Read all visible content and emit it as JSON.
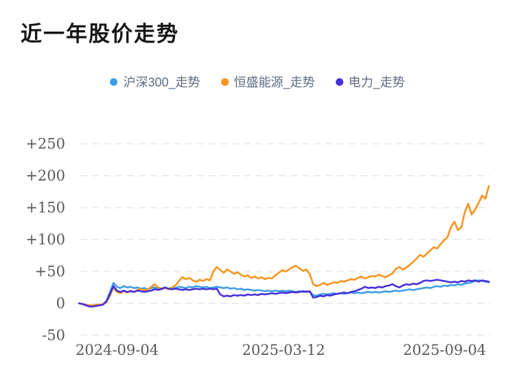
{
  "chart_data": {
    "type": "line",
    "title": "近一年股价走势",
    "x_ticks": [
      "2024-09-04",
      "2025-03-12",
      "2025-09-04"
    ],
    "y_ticks": [
      {
        "label": "+250",
        "value": 250
      },
      {
        "label": "+200",
        "value": 200
      },
      {
        "label": "+150",
        "value": 150
      },
      {
        "label": "+100",
        "value": 100
      },
      {
        "label": "+50",
        "value": 50
      },
      {
        "label": "0",
        "value": 0
      },
      {
        "label": "-50",
        "value": -50
      }
    ],
    "ylim": [
      -50,
      250
    ],
    "grid": "horizontal-dashed",
    "legend_position": "top-center",
    "colors": {
      "grid": "#ECECEC",
      "axis_text": "#595959",
      "legend_text": "#5B6B82",
      "title_text": "#161616"
    },
    "series": [
      {
        "name": "沪深300_走势",
        "color": "#3D9EE8",
        "values": [
          0,
          -1,
          -3,
          -4,
          -4,
          -3,
          -2,
          -1,
          4,
          18,
          32,
          26,
          24,
          27,
          25,
          26,
          24,
          25,
          23,
          24,
          22,
          24,
          25,
          23,
          22,
          24,
          23,
          25,
          24,
          26,
          25,
          24,
          26,
          25,
          27,
          26,
          25,
          26,
          24,
          25,
          26,
          25,
          24,
          25,
          23,
          24,
          22,
          23,
          21,
          22,
          21,
          20,
          21,
          20,
          19,
          20,
          19,
          20,
          19,
          20,
          19,
          20,
          19,
          18,
          19,
          18,
          19,
          18,
          13,
          12,
          14,
          15,
          14,
          15,
          16,
          15,
          16,
          15,
          16,
          17,
          16,
          17,
          16,
          17,
          18,
          17,
          18,
          17,
          18,
          19,
          18,
          19,
          20,
          19,
          20,
          21,
          22,
          21,
          22,
          23,
          24,
          25,
          24,
          26,
          27,
          26,
          28,
          27,
          29,
          28,
          30,
          29,
          31,
          32,
          33,
          35,
          36,
          35,
          34,
          33
        ]
      },
      {
        "name": "恒盛能源_走势",
        "color": "#F7941D",
        "values": [
          0,
          -1,
          -2,
          -3,
          -3,
          -2,
          -2,
          -1,
          2,
          12,
          25,
          18,
          16,
          19,
          17,
          20,
          18,
          21,
          23,
          20,
          22,
          26,
          30,
          25,
          23,
          24,
          22,
          25,
          28,
          35,
          41,
          38,
          40,
          36,
          34,
          37,
          35,
          38,
          36,
          50,
          57,
          52,
          48,
          53,
          50,
          46,
          49,
          45,
          42,
          44,
          40,
          42,
          39,
          41,
          38,
          40,
          39,
          44,
          48,
          52,
          50,
          53,
          57,
          59,
          55,
          51,
          53,
          46,
          30,
          27,
          29,
          32,
          29,
          31,
          33,
          32,
          35,
          34,
          36,
          38,
          37,
          40,
          42,
          39,
          41,
          43,
          42,
          45,
          43,
          41,
          44,
          47,
          54,
          57,
          53,
          56,
          60,
          65,
          70,
          76,
          73,
          78,
          83,
          88,
          86,
          93,
          99,
          104,
          120,
          128,
          115,
          119,
          143,
          156,
          139,
          147,
          157,
          169,
          164,
          184
        ]
      },
      {
        "name": "电力_走势",
        "color": "#4630D8",
        "values": [
          0,
          -1,
          -3,
          -5,
          -5,
          -4,
          -3,
          -2,
          3,
          15,
          27,
          20,
          18,
          20,
          18,
          19,
          18,
          20,
          19,
          18,
          19,
          20,
          22,
          21,
          23,
          25,
          23,
          22,
          23,
          22,
          21,
          22,
          21,
          22,
          23,
          22,
          23,
          22,
          23,
          22,
          23,
          14,
          11,
          12,
          11,
          13,
          12,
          13,
          12,
          14,
          13,
          14,
          13,
          15,
          14,
          15,
          16,
          15,
          16,
          17,
          16,
          17,
          18,
          17,
          18,
          19,
          18,
          19,
          9,
          10,
          12,
          11,
          13,
          12,
          14,
          15,
          16,
          17,
          16,
          18,
          19,
          21,
          23,
          26,
          24,
          25,
          24,
          26,
          25,
          27,
          28,
          30,
          27,
          25,
          28,
          30,
          29,
          31,
          30,
          32,
          35,
          36,
          35,
          36,
          37,
          36,
          35,
          34,
          33,
          34,
          33,
          35,
          34,
          36,
          35,
          36,
          34,
          36,
          35,
          34
        ]
      }
    ]
  }
}
